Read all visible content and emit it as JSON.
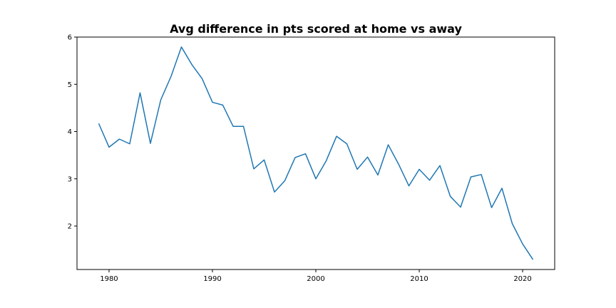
{
  "chart_data": {
    "type": "line",
    "title": "Avg difference in pts scored at home vs away",
    "xlabel": "",
    "ylabel": "",
    "xlim": [
      1976.9,
      2023.1
    ],
    "ylim": [
      1.08,
      6.0
    ],
    "x_ticks": [
      1980,
      1990,
      2000,
      2010,
      2020
    ],
    "y_ticks": [
      2,
      3,
      4,
      5,
      6
    ],
    "grid": false,
    "line_color": "#1f77b4",
    "series": [
      {
        "x": [
          1979,
          1980,
          1981,
          1982,
          1983,
          1984,
          1985,
          1986,
          1987,
          1988,
          1989,
          1990,
          1991,
          1992,
          1993,
          1994,
          1995,
          1996,
          1997,
          1998,
          1999,
          2000,
          2001,
          2002,
          2003,
          2004,
          2005,
          2006,
          2007,
          2008,
          2009,
          2010,
          2011,
          2012,
          2013,
          2014,
          2015,
          2016,
          2017,
          2018,
          2019,
          2020,
          2021
        ],
        "values": [
          4.17,
          3.67,
          3.84,
          3.74,
          4.82,
          3.75,
          4.67,
          5.17,
          5.79,
          5.42,
          5.12,
          4.62,
          4.56,
          4.11,
          4.11,
          3.21,
          3.4,
          2.72,
          2.96,
          3.45,
          3.53,
          3.0,
          3.38,
          3.9,
          3.74,
          3.2,
          3.46,
          3.08,
          3.72,
          3.31,
          2.85,
          3.2,
          2.97,
          3.28,
          2.63,
          2.4,
          3.04,
          3.09,
          2.39,
          2.8,
          2.05,
          1.62,
          1.29
        ]
      }
    ]
  }
}
